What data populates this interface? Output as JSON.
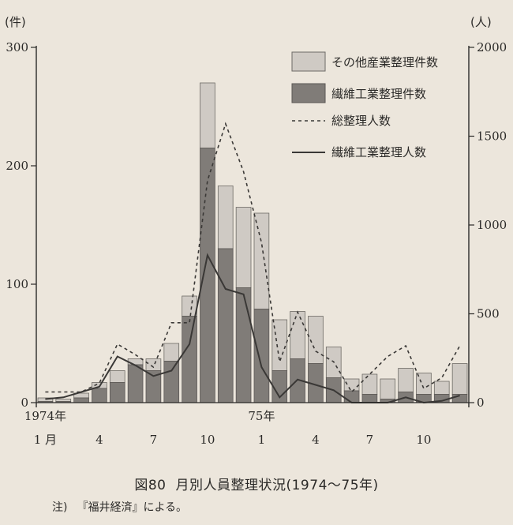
{
  "chart_data": {
    "type": "bar",
    "left_unit": "(件)",
    "right_unit": "(人)",
    "left_ylim": [
      0,
      300
    ],
    "right_ylim": [
      0,
      2000
    ],
    "left_ticks": [
      "300",
      "200",
      "100",
      "0"
    ],
    "right_ticks": [
      "2000",
      "1500",
      "1000",
      "500",
      "0"
    ],
    "x_tick_labels": [
      {
        "index": 0,
        "top": "1974年",
        "bottom": "1 月"
      },
      {
        "index": 3,
        "top": "",
        "bottom": "4"
      },
      {
        "index": 6,
        "top": "",
        "bottom": "7"
      },
      {
        "index": 9,
        "top": "",
        "bottom": "10"
      },
      {
        "index": 12,
        "top": "75年",
        "bottom": "1"
      },
      {
        "index": 15,
        "top": "",
        "bottom": "4"
      },
      {
        "index": 18,
        "top": "",
        "bottom": "7"
      },
      {
        "index": 21,
        "top": "",
        "bottom": "10"
      }
    ],
    "stacked_bar_total_cases": [
      4,
      3,
      8,
      17,
      27,
      37,
      37,
      50,
      90,
      270,
      183,
      165,
      160,
      70,
      77,
      73,
      47,
      20,
      24,
      20,
      29,
      25,
      18,
      33
    ],
    "textile_cases": [
      1,
      1,
      4,
      12,
      17,
      32,
      27,
      35,
      73,
      215,
      130,
      97,
      79,
      27,
      37,
      33,
      21,
      10,
      7,
      3,
      9,
      7,
      7,
      7
    ],
    "total_persons": [
      60,
      60,
      60,
      110,
      330,
      270,
      200,
      450,
      450,
      1250,
      1570,
      1300,
      900,
      230,
      510,
      290,
      230,
      60,
      160,
      260,
      320,
      80,
      140,
      320
    ],
    "textile_persons": [
      20,
      30,
      60,
      90,
      260,
      210,
      150,
      180,
      330,
      830,
      640,
      610,
      200,
      30,
      130,
      100,
      70,
      0,
      0,
      0,
      30,
      0,
      10,
      40
    ],
    "series": [
      {
        "name": "その他産業整理件数",
        "color": "#cfcac4"
      },
      {
        "name": "繊維工業整理件数",
        "color": "#807c78"
      },
      {
        "name": "総整理人数",
        "color": "#3a3836"
      },
      {
        "name": "繊維工業整理人数",
        "color": "#3a3836"
      }
    ]
  },
  "caption": {
    "figure": "図80",
    "title": "月別人員整理状況(1974〜75年)"
  },
  "note": {
    "label": "注)",
    "text": "『福井経済』による。"
  }
}
